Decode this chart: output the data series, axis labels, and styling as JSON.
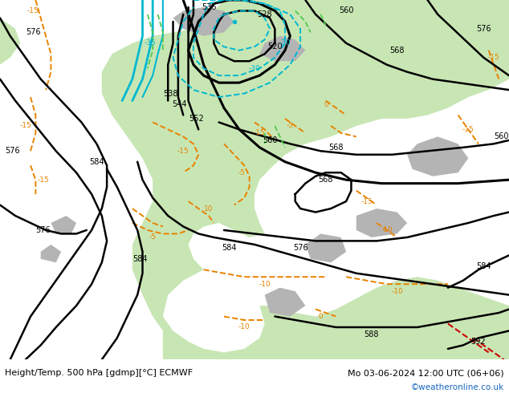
{
  "title_left": "Height/Temp. 500 hPa [gdmp][°C] ECMWF",
  "title_right": "Mo 03-06-2024 12:00 UTC (06+06)",
  "credit": "©weatheronline.co.uk",
  "ocean_color": "#d2d2d2",
  "land_green": "#c8e6b4",
  "land_gray": "#b4b4b4",
  "black_color": "#000000",
  "orange_color": "#e88200",
  "cyan_color": "#00b8d0",
  "red_color": "#cc0000",
  "green_color": "#50c850",
  "label_fs": 7,
  "title_fs": 8,
  "credit_fs": 7.5,
  "figsize": [
    6.34,
    4.9
  ],
  "dpi": 100
}
